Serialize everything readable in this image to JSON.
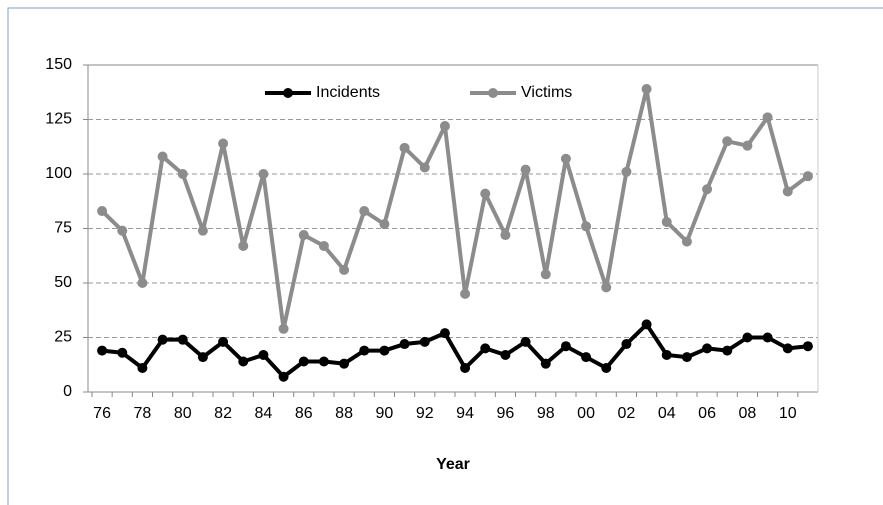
{
  "chart_data": {
    "type": "line",
    "xlabel": "Year",
    "categories": [
      "76",
      null,
      "78",
      null,
      "80",
      null,
      "82",
      null,
      "84",
      null,
      "86",
      null,
      "88",
      null,
      "90",
      null,
      "92",
      null,
      "94",
      null,
      "96",
      null,
      "98",
      null,
      "00",
      null,
      "02",
      null,
      "04",
      null,
      "06",
      null,
      "08",
      null,
      "10",
      null
    ],
    "series": [
      {
        "name": "Incidents",
        "color": "#000000",
        "values": [
          19,
          18,
          11,
          24,
          24,
          16,
          23,
          14,
          17,
          7,
          14,
          14,
          13,
          19,
          19,
          22,
          23,
          27,
          11,
          20,
          17,
          23,
          13,
          21,
          16,
          11,
          22,
          31,
          17,
          16,
          20,
          19,
          25,
          25,
          20,
          21
        ]
      },
      {
        "name": "Victims",
        "color": "#8c8c8c",
        "values": [
          83,
          74,
          50,
          108,
          100,
          74,
          114,
          67,
          100,
          29,
          72,
          67,
          56,
          83,
          77,
          112,
          103,
          122,
          45,
          91,
          72,
          102,
          54,
          107,
          76,
          48,
          101,
          139,
          78,
          69,
          93,
          115,
          113,
          126,
          92,
          99
        ]
      }
    ],
    "ylim": [
      0,
      150
    ],
    "yticks": [
      0,
      25,
      50,
      75,
      100,
      125,
      150
    ],
    "grid": true,
    "legend": "top"
  }
}
